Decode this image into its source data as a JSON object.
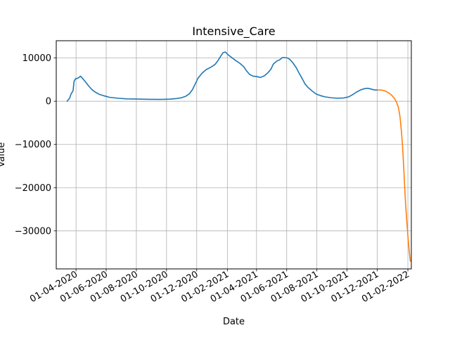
{
  "chart_data": {
    "type": "line",
    "title": "Intensive_Care",
    "xlabel": "Date",
    "ylabel": "Value",
    "grid": true,
    "xlim": [
      "2020-02-21",
      "2022-02-08"
    ],
    "ylim": [
      -38800,
      14000
    ],
    "x_ticks": [
      "2020-04-01",
      "2020-06-01",
      "2020-08-01",
      "2020-10-01",
      "2020-12-01",
      "2021-02-01",
      "2021-04-01",
      "2021-06-01",
      "2021-08-01",
      "2021-10-01",
      "2021-12-01",
      "2022-02-01"
    ],
    "x_tick_labels": [
      "01-04-2020",
      "01-06-2020",
      "01-08-2020",
      "01-10-2020",
      "01-12-2020",
      "01-02-2021",
      "01-04-2021",
      "01-06-2021",
      "01-08-2021",
      "01-10-2021",
      "01-12-2021",
      "01-02-2022"
    ],
    "y_ticks": [
      -30000,
      -20000,
      -10000,
      0,
      10000
    ],
    "y_tick_labels": [
      "−30000",
      "−20000",
      "−10000",
      "0",
      "10000"
    ],
    "series": [
      {
        "color": "#1f77b4",
        "points": [
          [
            "2020-03-14",
            0
          ],
          [
            "2020-03-19",
            700
          ],
          [
            "2020-03-22",
            1700
          ],
          [
            "2020-03-26",
            2400
          ],
          [
            "2020-03-28",
            4600
          ],
          [
            "2020-03-31",
            5200
          ],
          [
            "2020-04-04",
            5300
          ],
          [
            "2020-04-07",
            5500
          ],
          [
            "2020-04-10",
            5800
          ],
          [
            "2020-04-14",
            5300
          ],
          [
            "2020-04-20",
            4500
          ],
          [
            "2020-04-26",
            3600
          ],
          [
            "2020-05-03",
            2700
          ],
          [
            "2020-05-10",
            2100
          ],
          [
            "2020-05-18",
            1600
          ],
          [
            "2020-05-26",
            1300
          ],
          [
            "2020-06-08",
            900
          ],
          [
            "2020-06-24",
            700
          ],
          [
            "2020-07-12",
            550
          ],
          [
            "2020-08-01",
            500
          ],
          [
            "2020-08-25",
            450
          ],
          [
            "2020-09-18",
            420
          ],
          [
            "2020-10-08",
            480
          ],
          [
            "2020-10-20",
            600
          ],
          [
            "2020-10-31",
            800
          ],
          [
            "2020-11-08",
            1100
          ],
          [
            "2020-11-16",
            1700
          ],
          [
            "2020-11-22",
            2600
          ],
          [
            "2020-11-28",
            4000
          ],
          [
            "2020-12-04",
            5400
          ],
          [
            "2020-12-12",
            6500
          ],
          [
            "2020-12-20",
            7300
          ],
          [
            "2020-12-30",
            7900
          ],
          [
            "2021-01-07",
            8500
          ],
          [
            "2021-01-13",
            9400
          ],
          [
            "2021-01-19",
            10500
          ],
          [
            "2021-01-23",
            11200
          ],
          [
            "2021-01-28",
            11400
          ],
          [
            "2021-02-02",
            10800
          ],
          [
            "2021-02-10",
            10100
          ],
          [
            "2021-02-18",
            9400
          ],
          [
            "2021-02-26",
            8800
          ],
          [
            "2021-03-06",
            8000
          ],
          [
            "2021-03-12",
            7000
          ],
          [
            "2021-03-18",
            6200
          ],
          [
            "2021-03-25",
            5800
          ],
          [
            "2021-04-01",
            5700
          ],
          [
            "2021-04-09",
            5500
          ],
          [
            "2021-04-17",
            5900
          ],
          [
            "2021-04-24",
            6600
          ],
          [
            "2021-04-30",
            7400
          ],
          [
            "2021-05-05",
            8600
          ],
          [
            "2021-05-12",
            9300
          ],
          [
            "2021-05-18",
            9600
          ],
          [
            "2021-05-23",
            10100
          ],
          [
            "2021-05-28",
            10100
          ],
          [
            "2021-06-03",
            10000
          ],
          [
            "2021-06-08",
            9600
          ],
          [
            "2021-06-14",
            8800
          ],
          [
            "2021-06-20",
            7800
          ],
          [
            "2021-06-26",
            6500
          ],
          [
            "2021-07-02",
            5300
          ],
          [
            "2021-07-08",
            4000
          ],
          [
            "2021-07-14",
            3200
          ],
          [
            "2021-07-22",
            2400
          ],
          [
            "2021-07-30",
            1700
          ],
          [
            "2021-08-08",
            1300
          ],
          [
            "2021-08-18",
            1000
          ],
          [
            "2021-08-30",
            800
          ],
          [
            "2021-09-12",
            700
          ],
          [
            "2021-09-24",
            750
          ],
          [
            "2021-10-04",
            1000
          ],
          [
            "2021-10-12",
            1500
          ],
          [
            "2021-10-20",
            2100
          ],
          [
            "2021-10-28",
            2600
          ],
          [
            "2021-11-05",
            2900
          ],
          [
            "2021-11-12",
            3000
          ],
          [
            "2021-11-19",
            2800
          ],
          [
            "2021-11-26",
            2600
          ],
          [
            "2021-12-02",
            2600
          ]
        ]
      },
      {
        "color": "#ff7f0e",
        "points": [
          [
            "2021-12-02",
            2600
          ],
          [
            "2021-12-08",
            2600
          ],
          [
            "2021-12-14",
            2500
          ],
          [
            "2021-12-20",
            2200
          ],
          [
            "2021-12-26",
            1800
          ],
          [
            "2021-12-31",
            1300
          ],
          [
            "2022-01-05",
            600
          ],
          [
            "2022-01-09",
            -200
          ],
          [
            "2022-01-13",
            -1500
          ],
          [
            "2022-01-16",
            -3500
          ],
          [
            "2022-01-19",
            -7000
          ],
          [
            "2022-01-21",
            -10000
          ],
          [
            "2022-01-23",
            -14000
          ],
          [
            "2022-01-25",
            -18500
          ],
          [
            "2022-01-27",
            -23000
          ],
          [
            "2022-01-29",
            -26500
          ],
          [
            "2022-01-31",
            -29500
          ],
          [
            "2022-02-02",
            -32500
          ],
          [
            "2022-02-04",
            -35000
          ],
          [
            "2022-02-06",
            -37000
          ]
        ]
      }
    ]
  }
}
